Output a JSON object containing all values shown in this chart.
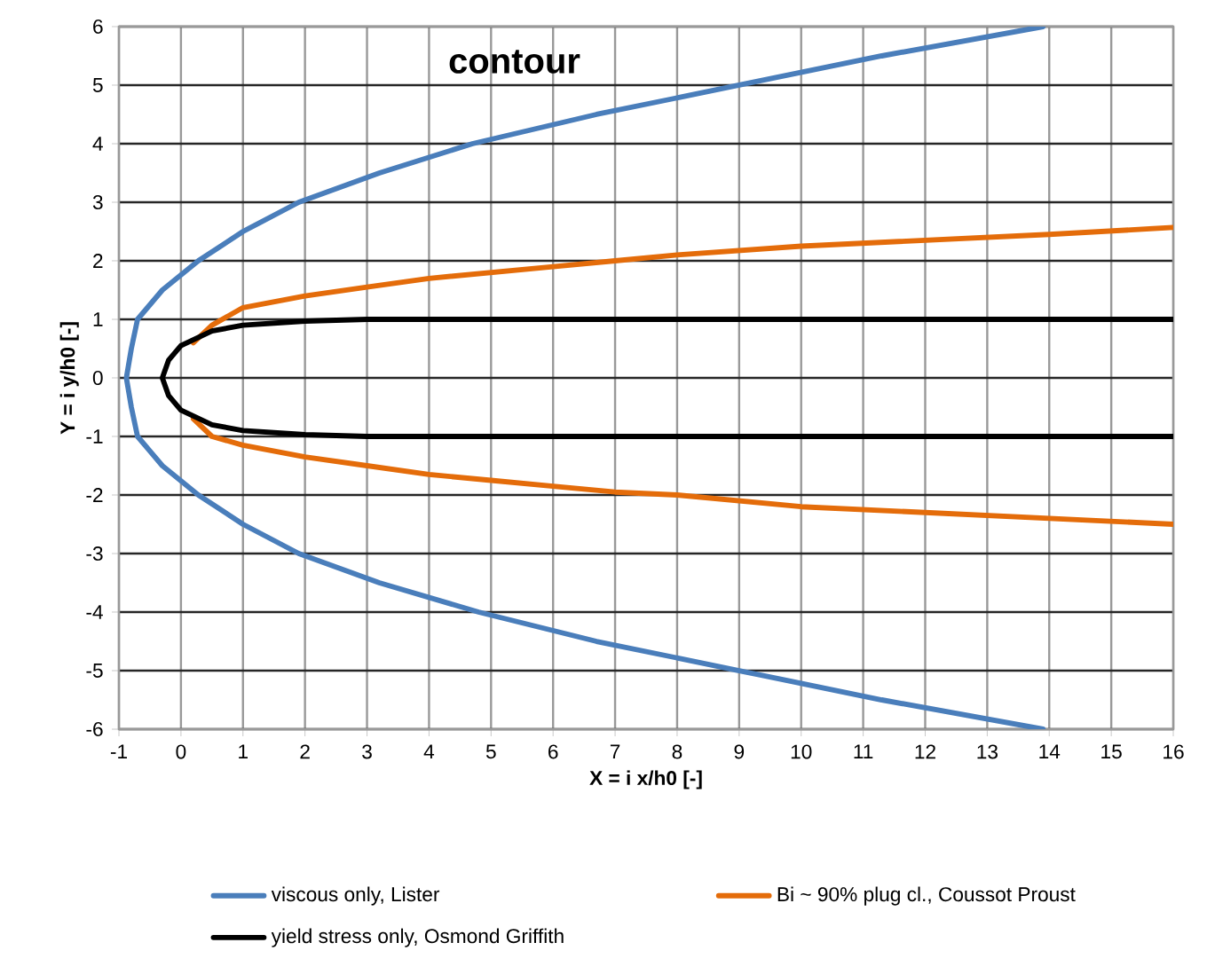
{
  "chart_data": {
    "type": "line",
    "title": "contour",
    "xlabel": "X = i x/h0 [-]",
    "ylabel": "Y = i y/h0 [-]",
    "xlim": [
      -1,
      16
    ],
    "ylim": [
      -6,
      6
    ],
    "xticks": [
      -1,
      0,
      1,
      2,
      3,
      4,
      5,
      6,
      7,
      8,
      9,
      10,
      11,
      12,
      13,
      14,
      15,
      16
    ],
    "yticks": [
      -6,
      -5,
      -4,
      -3,
      -2,
      -1,
      0,
      1,
      2,
      3,
      4,
      5,
      6
    ],
    "grid": true,
    "legend": "bottom",
    "line_style": "solid",
    "series": [
      {
        "name": "viscous only, Lister",
        "color": "#4a7ebb",
        "x": [
          13.9,
          11.3,
          9,
          6.7,
          4.8,
          3.2,
          1.9,
          1,
          0.28,
          -0.3,
          -0.7,
          -0.8,
          -0.88,
          -0.8,
          -0.7,
          -0.3,
          0.28,
          1,
          1.9,
          3.2,
          4.7,
          6.7,
          9,
          11.3,
          13.9
        ],
        "values": [
          -6,
          -5.5,
          -5,
          -4.5,
          -4,
          -3.5,
          -3,
          -2.5,
          -2,
          -1.5,
          -1,
          -0.5,
          0,
          0.5,
          1,
          1.5,
          2,
          2.5,
          3,
          3.5,
          4,
          4.5,
          5,
          5.5,
          6
        ]
      },
      {
        "name": "Bi ~ 90% plug cl., Coussot Proust",
        "color": "#e46c0a",
        "x": [
          16,
          14,
          12,
          10,
          9,
          8,
          7,
          6,
          5,
          4,
          3,
          2,
          1,
          0.5,
          0.2,
          null,
          0.2,
          0.5,
          1,
          2,
          3,
          4,
          6,
          7,
          8,
          10,
          14,
          16
        ],
        "values": [
          -2.5,
          -2.4,
          -2.3,
          -2.2,
          -2.1,
          -2.0,
          -1.95,
          -1.85,
          -1.75,
          -1.65,
          -1.5,
          -1.35,
          -1.15,
          -1.0,
          -0.7,
          null,
          0.6,
          0.9,
          1.2,
          1.4,
          1.55,
          1.7,
          1.9,
          2.0,
          2.1,
          2.25,
          2.45,
          2.57
        ]
      },
      {
        "name": "yield stress only, Osmond Griffith",
        "color": "#000000",
        "x": [
          16,
          3,
          2,
          1,
          0.5,
          0,
          -0.2,
          -0.3,
          -0.2,
          0,
          0.5,
          1,
          2,
          3,
          16
        ],
        "values": [
          1,
          1,
          0.97,
          0.9,
          0.8,
          0.55,
          0.3,
          0,
          -0.3,
          -0.55,
          -0.8,
          -0.9,
          -0.97,
          -1,
          -1
        ]
      }
    ]
  }
}
